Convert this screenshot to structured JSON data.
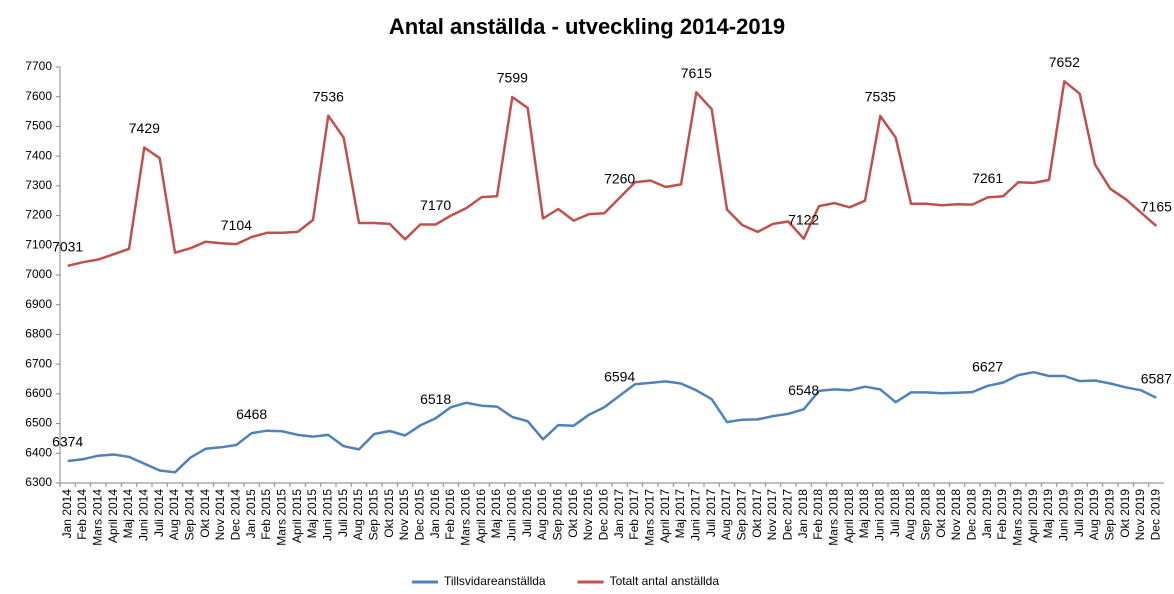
{
  "chart_data": {
    "type": "line",
    "title": "Antal anställda - utveckling 2014-2019",
    "categories": [
      "Jan 2014",
      "Feb 2014",
      "Mars 2014",
      "April 2014",
      "Maj 2014",
      "Juni 2014",
      "Juli 2014",
      "Aug 2014",
      "Sep 2014",
      "Okt 2014",
      "Nov 2014",
      "Dec 2014",
      "Jan 2015",
      "Feb 2015",
      "Mars 2015",
      "April 2015",
      "Maj 2015",
      "Juni 2015",
      "Juli 2015",
      "Aug 2015",
      "Sep 2015",
      "Okt 2015",
      "Nov 2015",
      "Dec 2015",
      "Jan 2016",
      "Feb 2016",
      "Mars 2016",
      "April 2016",
      "Maj 2016",
      "Juni 2016",
      "Juli 2016",
      "Aug 2016",
      "Sep 2016",
      "Okt 2016",
      "Nov 2016",
      "Dec 2016",
      "Jan 2017",
      "Feb 2017",
      "Mars 2017",
      "April 2017",
      "Maj 2017",
      "Juni 2017",
      "Juli 2017",
      "Aug 2017",
      "Sep 2017",
      "Okt 2017",
      "Nov 2017",
      "Dec 2017",
      "Jan 2018",
      "Feb 2018",
      "Mars 2018",
      "April 2018",
      "Maj 2018",
      "Juni 2018",
      "Juli 2018",
      "Aug 2018",
      "Sep 2018",
      "Okt 2018",
      "Nov 2018",
      "Dec 2018",
      "Jan 2019",
      "Feb 2019",
      "Mars 2019",
      "April 2019",
      "Maj 2019",
      "Juni 2019",
      "Juli 2019",
      "Aug 2019",
      "Sep 2019",
      "Okt 2019",
      "Nov 2019",
      "Dec 2019"
    ],
    "series": [
      {
        "name": "Tillsvidareanställda",
        "color": "#4f81bd",
        "values": [
          6374,
          6380,
          6392,
          6396,
          6388,
          6365,
          6342,
          6336,
          6385,
          6415,
          6420,
          6428,
          6468,
          6476,
          6474,
          6462,
          6456,
          6462,
          6424,
          6413,
          6465,
          6475,
          6460,
          6494,
          6518,
          6555,
          6570,
          6560,
          6557,
          6522,
          6508,
          6447,
          6495,
          6493,
          6530,
          6555,
          6594,
          6632,
          6637,
          6642,
          6635,
          6612,
          6582,
          6505,
          6513,
          6514,
          6525,
          6533,
          6548,
          6610,
          6615,
          6612,
          6624,
          6615,
          6572,
          6605,
          6605,
          6602,
          6604,
          6606,
          6627,
          6638,
          6663,
          6673,
          6660,
          6660,
          6643,
          6645,
          6635,
          6622,
          6612,
          6587
        ],
        "value_labels": [
          "6374",
          null,
          null,
          null,
          null,
          null,
          null,
          null,
          null,
          null,
          null,
          null,
          "6468",
          null,
          null,
          null,
          null,
          null,
          null,
          null,
          null,
          null,
          null,
          null,
          "6518",
          null,
          null,
          null,
          null,
          null,
          null,
          null,
          null,
          null,
          null,
          null,
          "6594",
          null,
          null,
          null,
          null,
          null,
          null,
          null,
          null,
          null,
          null,
          null,
          "6548",
          null,
          null,
          null,
          null,
          null,
          null,
          null,
          null,
          null,
          null,
          null,
          "6627",
          null,
          null,
          null,
          null,
          null,
          null,
          null,
          null,
          null,
          null,
          "6587"
        ]
      },
      {
        "name": "Totalt antal anställda",
        "color": "#c0504d",
        "values": [
          7031,
          7043,
          7052,
          7070,
          7088,
          7429,
          7393,
          7075,
          7090,
          7112,
          7107,
          7104,
          7128,
          7142,
          7142,
          7145,
          7185,
          7536,
          7462,
          7175,
          7175,
          7172,
          7120,
          7170,
          7170,
          7200,
          7225,
          7262,
          7265,
          7599,
          7562,
          7190,
          7222,
          7183,
          7205,
          7208,
          7260,
          7312,
          7318,
          7296,
          7305,
          7615,
          7558,
          7220,
          7168,
          7145,
          7172,
          7180,
          7122,
          7232,
          7242,
          7228,
          7250,
          7535,
          7462,
          7240,
          7240,
          7235,
          7238,
          7237,
          7261,
          7265,
          7312,
          7310,
          7320,
          7652,
          7610,
          7372,
          7290,
          7255,
          7210,
          7165
        ],
        "value_labels": [
          "7031",
          null,
          null,
          null,
          null,
          "7429",
          null,
          null,
          null,
          null,
          null,
          "7104",
          null,
          null,
          null,
          null,
          null,
          "7536",
          null,
          null,
          null,
          null,
          null,
          null,
          "7170",
          null,
          null,
          null,
          null,
          "7599",
          null,
          null,
          null,
          null,
          null,
          null,
          "7260",
          null,
          null,
          null,
          null,
          "7615",
          null,
          null,
          null,
          null,
          null,
          null,
          "7122",
          null,
          null,
          null,
          null,
          "7535",
          null,
          null,
          null,
          null,
          null,
          null,
          "7261",
          null,
          null,
          null,
          null,
          "7652",
          null,
          null,
          null,
          null,
          null,
          "7165"
        ]
      }
    ],
    "ylim": [
      6300,
      7700
    ],
    "yticks": [
      6300,
      6400,
      6500,
      6600,
      6700,
      6800,
      6900,
      7000,
      7100,
      7200,
      7300,
      7400,
      7500,
      7600,
      7700
    ],
    "grid": false,
    "legend": "bottom"
  }
}
